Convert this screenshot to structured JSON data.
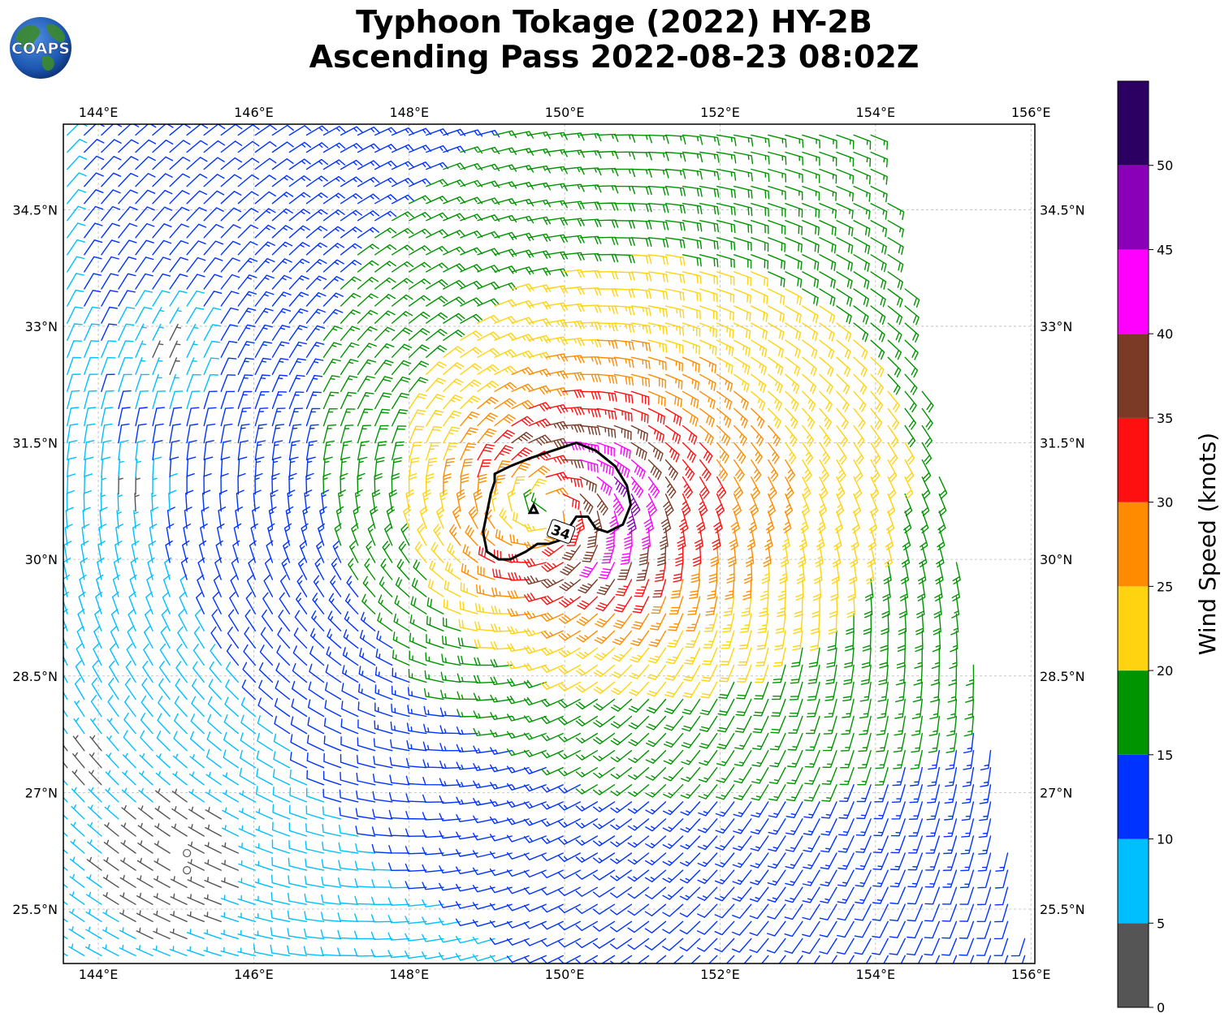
{
  "title": {
    "line1": "Typhoon Tokage (2022) HY-2B",
    "line2": "Ascending Pass 2022-08-23 08:02Z"
  },
  "logo": {
    "text": "COAPS",
    "icon": "globe-icon"
  },
  "map": {
    "lon_range": [
      143.55,
      156.05
    ],
    "lat_range": [
      24.8,
      35.6
    ],
    "lon_ticks": [
      144,
      146,
      148,
      150,
      152,
      154,
      156
    ],
    "lon_tick_labels": [
      "144°E",
      "146°E",
      "148°E",
      "150°E",
      "152°E",
      "154°E",
      "156°E"
    ],
    "lat_ticks": [
      25.5,
      27,
      28.5,
      30,
      31.5,
      33,
      34.5
    ],
    "lat_tick_labels": [
      "25.5°N",
      "27°N",
      "28.5°N",
      "30°N",
      "31.5°N",
      "33°N",
      "34.5°N"
    ],
    "grid": true,
    "swath_outline": [
      [
        143.6,
        35.6
      ],
      [
        154.0,
        35.6
      ],
      [
        156.0,
        24.8
      ],
      [
        143.6,
        24.8
      ]
    ],
    "storm_center": [
      149.8,
      30.65
    ],
    "contour": {
      "label": "34",
      "label_position": [
        149.95,
        30.35
      ],
      "points": [
        [
          149.1,
          31.1
        ],
        [
          149.3,
          31.2
        ],
        [
          149.55,
          31.3
        ],
        [
          149.85,
          31.4
        ],
        [
          150.15,
          31.5
        ],
        [
          150.4,
          31.4
        ],
        [
          150.65,
          31.2
        ],
        [
          150.8,
          30.95
        ],
        [
          150.85,
          30.7
        ],
        [
          150.75,
          30.45
        ],
        [
          150.55,
          30.35
        ],
        [
          150.4,
          30.4
        ],
        [
          150.3,
          30.55
        ],
        [
          150.15,
          30.55
        ],
        [
          150.05,
          30.4
        ],
        [
          149.95,
          30.25
        ],
        [
          149.8,
          30.2
        ],
        [
          149.65,
          30.2
        ],
        [
          149.5,
          30.1
        ],
        [
          149.3,
          30.0
        ],
        [
          149.15,
          30.0
        ],
        [
          149.0,
          30.1
        ],
        [
          148.95,
          30.35
        ],
        [
          149.0,
          30.6
        ],
        [
          149.05,
          30.85
        ],
        [
          149.1,
          31.0
        ],
        [
          149.1,
          31.1
        ]
      ]
    },
    "small_contour": [
      [
        149.55,
        30.6
      ],
      [
        149.6,
        30.7
      ],
      [
        149.65,
        30.6
      ],
      [
        149.55,
        30.6
      ]
    ],
    "wind_model": {
      "center": [
        149.8,
        30.65
      ],
      "peak_speed_kt": 37,
      "radius_of_max_wind_deg": 0.9,
      "calm_zones": [
        [
          144.9,
          32.6,
          0.9
        ],
        [
          145.1,
          26.1,
          1.6
        ],
        [
          144.4,
          30.8,
          0.6
        ],
        [
          143.9,
          27.4,
          0.6
        ]
      ],
      "background_flow_kt": 6,
      "eastern_cutoff": "swath edge"
    }
  },
  "colorbar": {
    "label": "Wind Speed (knots)",
    "min": 0,
    "max": 55,
    "tick_values": [
      0,
      5,
      10,
      15,
      20,
      25,
      30,
      35,
      40,
      45,
      50
    ],
    "tick_labels": [
      "0",
      "5",
      "10",
      "15",
      "20",
      "25",
      "30",
      "35",
      "40",
      "45",
      "50"
    ],
    "bins": [
      {
        "min": 0,
        "max": 5,
        "color": "#555555"
      },
      {
        "min": 5,
        "max": 10,
        "color": "#00bfff"
      },
      {
        "min": 10,
        "max": 15,
        "color": "#0033ff"
      },
      {
        "min": 15,
        "max": 20,
        "color": "#009400"
      },
      {
        "min": 20,
        "max": 25,
        "color": "#ffd30f"
      },
      {
        "min": 25,
        "max": 30,
        "color": "#ff8c00"
      },
      {
        "min": 30,
        "max": 35,
        "color": "#ff1010"
      },
      {
        "min": 35,
        "max": 40,
        "color": "#7b3a25"
      },
      {
        "min": 40,
        "max": 45,
        "color": "#ff00ff"
      },
      {
        "min": 45,
        "max": 50,
        "color": "#8a00b8"
      },
      {
        "min": 50,
        "max": 55,
        "color": "#2c0062"
      }
    ]
  }
}
